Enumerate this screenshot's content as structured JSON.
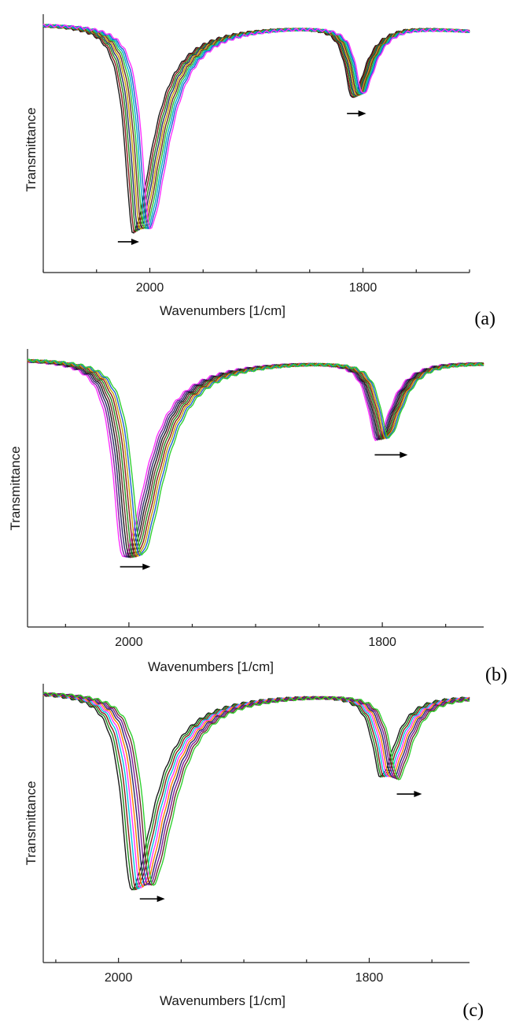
{
  "chart_data": [
    {
      "type": "line",
      "panel_label": "(a)",
      "xlabel": "Wavenumbers [1/cm]",
      "ylabel": "Transmittance",
      "xlim": [
        2100,
        1700
      ],
      "x_reversed": true,
      "x_ticks": [
        2000,
        1800
      ],
      "y_ticks_shown": false,
      "grid": false,
      "legend": "none",
      "n_series": 10,
      "series_colors": [
        "#1a1a1a",
        "#8b1a1a",
        "#1e8a1e",
        "#2a2a66",
        "#c8a000",
        "#6a2a2a",
        "#30c030",
        "#00b0c8",
        "#2060d0",
        "#ff30ff"
      ],
      "peaks": [
        {
          "x_start": 2016,
          "x_end": 2000,
          "dip_depth_start": 0.92,
          "dip_depth_end": 0.9
        },
        {
          "x_start": 1810,
          "x_end": 1800,
          "dip_depth_start": 0.32,
          "dip_depth_end": 0.3
        }
      ],
      "arrows": [
        {
          "x_from": 2030,
          "x_to": 2010,
          "direction": "right"
        },
        {
          "x_from": 1815,
          "x_to": 1797,
          "direction": "right"
        }
      ]
    },
    {
      "type": "line",
      "panel_label": "(b)",
      "xlabel": "Wavenumbers [1/cm]",
      "ylabel": "Transmittance",
      "xlim": [
        2080,
        1720
      ],
      "x_reversed": true,
      "x_ticks": [
        2000,
        1800
      ],
      "y_ticks_shown": false,
      "grid": false,
      "legend": "none",
      "n_series": 10,
      "series_colors": [
        "#ff30ff",
        "#7a1a9a",
        "#2a2a66",
        "#1a1a1a",
        "#6a2a2a",
        "#1e8a1e",
        "#8b1a1a",
        "#c8a000",
        "#2060d0",
        "#30d030"
      ],
      "peaks": [
        {
          "x_start": 2005,
          "x_end": 1990,
          "dip_depth_start": 0.88,
          "dip_depth_end": 0.87
        },
        {
          "x_start": 1805,
          "x_end": 1795,
          "dip_depth_start": 0.35,
          "dip_depth_end": 0.34
        }
      ],
      "arrows": [
        {
          "x_from": 2007,
          "x_to": 1983,
          "direction": "right"
        },
        {
          "x_from": 1806,
          "x_to": 1780,
          "direction": "right"
        }
      ]
    },
    {
      "type": "line",
      "panel_label": "(c)",
      "xlabel": "Wavenumbers [1/cm]",
      "ylabel": "Transmittance",
      "xlim": [
        2060,
        1720
      ],
      "x_reversed": true,
      "x_ticks": [
        2000,
        1800
      ],
      "y_ticks_shown": false,
      "grid": false,
      "legend": "none",
      "n_series": 10,
      "series_colors": [
        "#1a1a1a",
        "#1e8a1e",
        "#8b1a1a",
        "#00c8e0",
        "#ff30ff",
        "#ff8000",
        "#2a2a66",
        "#7a1a9a",
        "#6a2a2a",
        "#30d030"
      ],
      "peaks": [
        {
          "x_start": 1990,
          "x_end": 1973,
          "dip_depth_start": 0.86,
          "dip_depth_end": 0.84
        },
        {
          "x_start": 1791,
          "x_end": 1777,
          "dip_depth_start": 0.36,
          "dip_depth_end": 0.37
        }
      ],
      "arrows": [
        {
          "x_from": 1983,
          "x_to": 1963,
          "direction": "right"
        },
        {
          "x_from": 1778,
          "x_to": 1758,
          "direction": "right"
        }
      ]
    }
  ]
}
